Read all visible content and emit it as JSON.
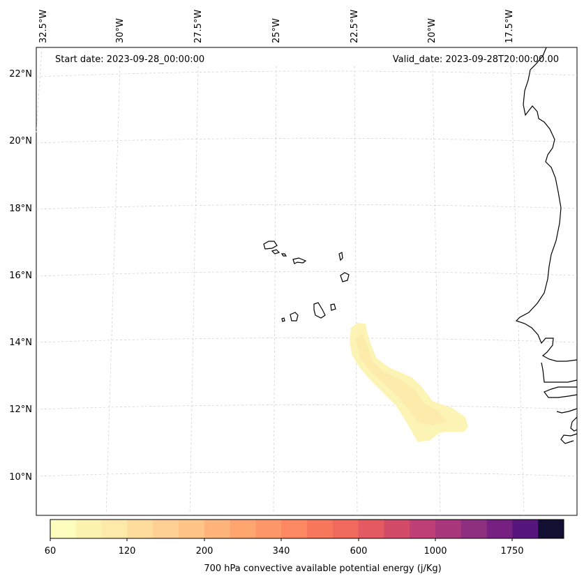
{
  "map": {
    "lat_labels": [
      "22°N",
      "20°N",
      "18°N",
      "16°N",
      "14°N",
      "12°N",
      "10°N"
    ],
    "lon_labels": [
      "32.5°W",
      "30°W",
      "27.5°W",
      "25°W",
      "22.5°W",
      "20°W",
      "17.5°W"
    ],
    "start_date": "Start date: 2023-09-28_00:00:00",
    "valid_date": "Valid_date: 2023-09-28T20:00:00.00",
    "features": [
      "Cape Verde Islands",
      "West African coastline"
    ],
    "field": "700 hPa convective available potential energy",
    "field_max_level": 120
  },
  "colorbar": {
    "label": "700 hPa convective available potential energy (j/Kg)",
    "tick_labels": [
      "60",
      "120",
      "200",
      "340",
      "600",
      "1000",
      "1750"
    ],
    "colors": [
      "#fcfdbf",
      "#fcf2b0",
      "#fde9a9",
      "#fedc9d",
      "#fed093",
      "#fec488",
      "#feb47b",
      "#fea570",
      "#fd9668",
      "#fb8861",
      "#f6775c",
      "#ef6a5d",
      "#e35a62",
      "#d24c6a",
      "#bf4077",
      "#a8387b",
      "#8f2f80",
      "#762181",
      "#57157e",
      "#130f32"
    ]
  }
}
